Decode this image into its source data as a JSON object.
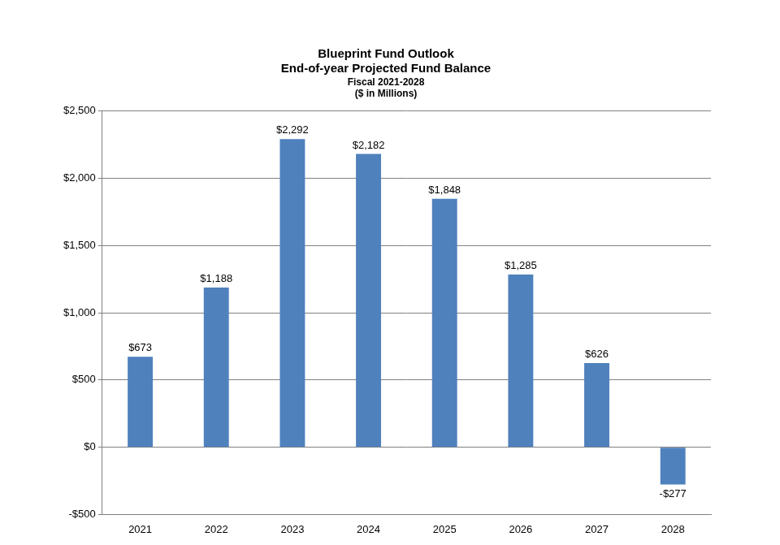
{
  "chart_data": {
    "type": "bar",
    "title": [
      "Blueprint Fund Outlook",
      "End-of-year Projected Fund Balance"
    ],
    "subtitle": [
      "Fiscal 2021-2028",
      "($ in Millions)"
    ],
    "categories": [
      "2021",
      "2022",
      "2023",
      "2024",
      "2025",
      "2026",
      "2027",
      "2028"
    ],
    "values": [
      673,
      1188,
      2292,
      2182,
      1848,
      1285,
      626,
      -277
    ],
    "value_labels": [
      "$673",
      "$1,188",
      "$2,292",
      "$2,182",
      "$1,848",
      "$1,285",
      "$626",
      "-$277"
    ],
    "color": "#4f81bd",
    "ylim": [
      -500,
      2500
    ],
    "yticks": [
      {
        "value": -500,
        "label": "-$500"
      },
      {
        "value": 0,
        "label": "$0"
      },
      {
        "value": 500,
        "label": "$500"
      },
      {
        "value": 1000,
        "label": "$1,000"
      },
      {
        "value": 1500,
        "label": "$1,500"
      },
      {
        "value": 2000,
        "label": "$2,000"
      },
      {
        "value": 2500,
        "label": "$2,500"
      }
    ],
    "grid": true,
    "data_labels": true
  }
}
